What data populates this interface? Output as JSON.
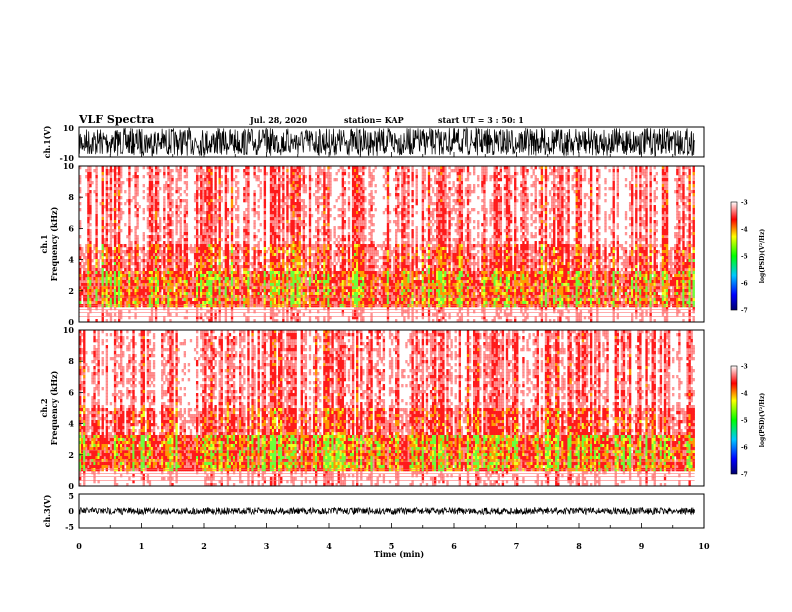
{
  "header": {
    "title": "VLF Spectra",
    "date": "Jul. 28, 2020",
    "station": "station= KAP",
    "start": "start UT =  3 : 50: 1"
  },
  "chart_data": [
    {
      "type": "line",
      "panel": "ch1-waveform",
      "ylabel": "ch.1(V)",
      "yticks": [
        "10",
        "-10"
      ],
      "ylim": [
        -10,
        10
      ],
      "xlim": [
        0,
        10
      ]
    },
    {
      "type": "heatmap",
      "panel": "ch1-spectrogram",
      "ylabel_top": "ch.1",
      "ylabel": "Frequency (kHz)",
      "yticks": [
        "0",
        "2",
        "4",
        "6",
        "8",
        "10"
      ],
      "ylim": [
        0,
        10
      ],
      "xlim": [
        0,
        10
      ],
      "colorbar": {
        "label": "log(PSD)(V²/Hz)",
        "ticks": [
          "-3",
          "-4",
          "-5",
          "-6",
          "-7"
        ],
        "range": [
          -7,
          -3
        ]
      }
    },
    {
      "type": "heatmap",
      "panel": "ch2-spectrogram",
      "ylabel_top": "ch.2",
      "ylabel": "Frequency (kHz)",
      "yticks": [
        "0",
        "2",
        "4",
        "6",
        "8",
        "10"
      ],
      "ylim": [
        0,
        10
      ],
      "xlim": [
        0,
        10
      ],
      "colorbar": {
        "label": "log(PSD)(V²/Hz)",
        "ticks": [
          "-3",
          "-4",
          "-5",
          "-6",
          "-7"
        ],
        "range": [
          -7,
          -3
        ]
      }
    },
    {
      "type": "line",
      "panel": "ch3-waveform",
      "ylabel": "ch.3(V)",
      "yticks": [
        "5",
        "0",
        "-5"
      ],
      "ylim": [
        -5,
        5
      ],
      "xlim": [
        0,
        10
      ],
      "xticks": [
        "0",
        "1",
        "2",
        "3",
        "4",
        "5",
        "6",
        "7",
        "8",
        "9",
        "10"
      ],
      "xlabel": "Time (min)"
    }
  ]
}
